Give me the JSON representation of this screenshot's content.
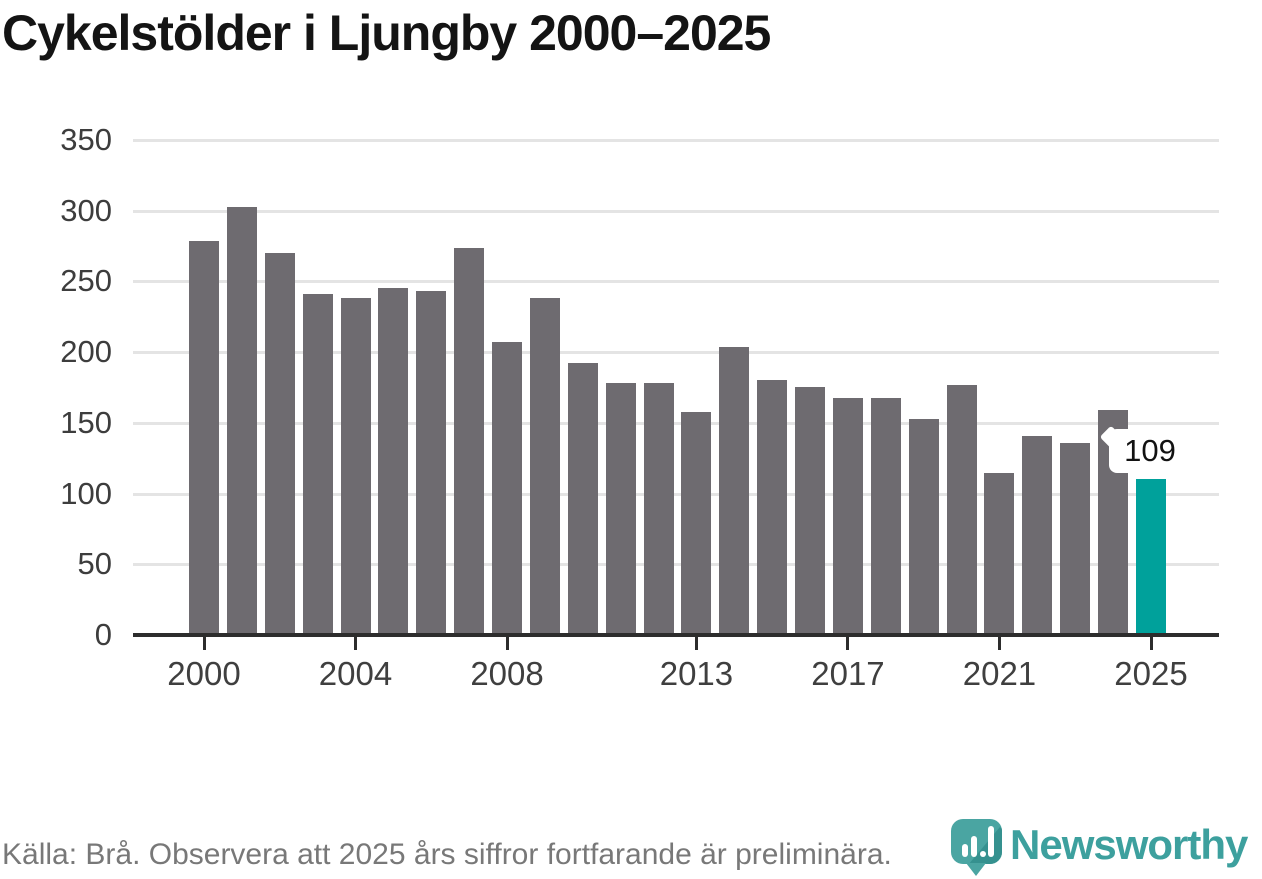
{
  "title": "Cykelstölder i Ljungby 2000–2025",
  "footer": {
    "source_note": "Källa: Brå. Observera att 2025 års siffror fortfarande är preliminära.",
    "brand": "Newsworthy"
  },
  "chart_data": {
    "type": "bar",
    "title": "Cykelstölder i Ljungby 2000–2025",
    "categories": [
      "2000",
      "2001",
      "2002",
      "2003",
      "2004",
      "2005",
      "2006",
      "2007",
      "2008",
      "2009",
      "2010",
      "2011",
      "2012",
      "2013",
      "2014",
      "2015",
      "2016",
      "2017",
      "2018",
      "2019",
      "2020",
      "2021",
      "2022",
      "2023",
      "2024",
      "2025"
    ],
    "values": [
      277,
      301,
      269,
      240,
      237,
      244,
      242,
      272,
      206,
      237,
      191,
      177,
      177,
      156,
      202,
      179,
      174,
      166,
      166,
      151,
      175,
      113,
      139,
      134,
      158,
      109
    ],
    "ylim": [
      0,
      350
    ],
    "yticks": [
      0,
      50,
      100,
      150,
      200,
      250,
      300,
      350
    ],
    "xtick_years": [
      "2000",
      "2004",
      "2008",
      "2013",
      "2017",
      "2021",
      "2025"
    ],
    "grid": true,
    "legend": "none",
    "bar_color": "#6e6b70",
    "highlight_color": "#00a19b",
    "highlight_index": 25,
    "highlight_label": "109"
  }
}
